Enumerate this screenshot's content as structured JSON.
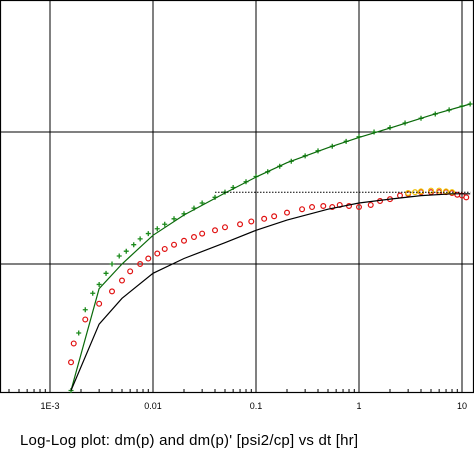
{
  "chart_data": {
    "type": "scatter",
    "title": "",
    "caption": "Log-Log plot: dm(p) and dm(p)'  [psi2/cp] vs dt [hr]",
    "x_scale": "log",
    "y_scale": "log",
    "xlim": [
      0.0003,
      12
    ],
    "x_ticks": [
      0.001,
      0.01,
      0.1,
      1,
      10
    ],
    "x_tick_labels": [
      "1E-3",
      "0.01",
      "0.1",
      "1",
      "10"
    ],
    "grid": true,
    "legend": "none",
    "series": [
      {
        "role": "pressure-change-data",
        "marker": "plus",
        "color": "#1a8a1a",
        "points": [
          [
            0.0016,
            0.011
          ],
          [
            0.0019,
            0.03
          ],
          [
            0.0022,
            0.045
          ],
          [
            0.0026,
            0.06
          ],
          [
            0.003,
            0.07
          ],
          [
            0.0035,
            0.085
          ],
          [
            0.004,
            0.1
          ],
          [
            0.0047,
            0.115
          ],
          [
            0.0055,
            0.125
          ],
          [
            0.0065,
            0.14
          ],
          [
            0.0075,
            0.155
          ],
          [
            0.009,
            0.17
          ],
          [
            0.011,
            0.185
          ],
          [
            0.013,
            0.2
          ],
          [
            0.016,
            0.22
          ],
          [
            0.02,
            0.24
          ],
          [
            0.025,
            0.265
          ],
          [
            0.03,
            0.29
          ],
          [
            0.04,
            0.32
          ],
          [
            0.05,
            0.35
          ],
          [
            0.06,
            0.38
          ],
          [
            0.08,
            0.42
          ],
          [
            0.1,
            0.46
          ],
          [
            0.13,
            0.5
          ],
          [
            0.17,
            0.55
          ],
          [
            0.22,
            0.6
          ],
          [
            0.3,
            0.66
          ],
          [
            0.4,
            0.72
          ],
          [
            0.55,
            0.78
          ],
          [
            0.75,
            0.85
          ],
          [
            1.0,
            0.92
          ],
          [
            1.4,
            1.0
          ],
          [
            2.0,
            1.08
          ],
          [
            2.8,
            1.17
          ],
          [
            4.0,
            1.27
          ],
          [
            5.5,
            1.37
          ],
          [
            7.5,
            1.47
          ],
          [
            10.0,
            1.57
          ],
          [
            12.0,
            1.63
          ]
        ]
      },
      {
        "role": "pressure-derivative-data",
        "marker": "circle",
        "color": "#e01010",
        "points": [
          [
            0.0016,
            0.018
          ],
          [
            0.0017,
            0.025
          ],
          [
            0.0022,
            0.038
          ],
          [
            0.003,
            0.05
          ],
          [
            0.004,
            0.062
          ],
          [
            0.005,
            0.075
          ],
          [
            0.006,
            0.088
          ],
          [
            0.0075,
            0.1
          ],
          [
            0.009,
            0.11
          ],
          [
            0.011,
            0.12
          ],
          [
            0.013,
            0.13
          ],
          [
            0.016,
            0.14
          ],
          [
            0.02,
            0.15
          ],
          [
            0.025,
            0.16
          ],
          [
            0.03,
            0.17
          ],
          [
            0.04,
            0.18
          ],
          [
            0.05,
            0.19
          ],
          [
            0.07,
            0.2
          ],
          [
            0.09,
            0.21
          ],
          [
            0.12,
            0.22
          ],
          [
            0.15,
            0.23
          ],
          [
            0.2,
            0.245
          ],
          [
            0.28,
            0.26
          ],
          [
            0.35,
            0.27
          ],
          [
            0.45,
            0.275
          ],
          [
            0.55,
            0.27
          ],
          [
            0.65,
            0.28
          ],
          [
            0.8,
            0.275
          ],
          [
            1.0,
            0.27
          ],
          [
            1.3,
            0.28
          ],
          [
            1.6,
            0.3
          ],
          [
            2.0,
            0.31
          ],
          [
            2.5,
            0.33
          ],
          [
            3.0,
            0.34
          ],
          [
            4.0,
            0.35
          ],
          [
            5.0,
            0.35
          ],
          [
            6.0,
            0.35
          ],
          [
            7.0,
            0.35
          ],
          [
            8.0,
            0.345
          ],
          [
            9.0,
            0.335
          ],
          [
            10.0,
            0.33
          ],
          [
            11.0,
            0.32
          ]
        ]
      },
      {
        "role": "highlighted-derivative-points",
        "marker": "circle",
        "color": "#f0c000",
        "points": [
          [
            3.0,
            0.345
          ],
          [
            3.5,
            0.35
          ],
          [
            4.0,
            0.355
          ],
          [
            5.0,
            0.36
          ],
          [
            6.0,
            0.36
          ],
          [
            7.0,
            0.355
          ],
          [
            8.0,
            0.35
          ]
        ]
      },
      {
        "role": "pressure-change-model",
        "style": "line",
        "color": "#0a6a0a",
        "points": [
          [
            0.0016,
            0.011
          ],
          [
            0.003,
            0.065
          ],
          [
            0.005,
            0.1
          ],
          [
            0.01,
            0.165
          ],
          [
            0.02,
            0.235
          ],
          [
            0.05,
            0.345
          ],
          [
            0.1,
            0.455
          ],
          [
            0.2,
            0.585
          ],
          [
            0.5,
            0.76
          ],
          [
            1.0,
            0.91
          ],
          [
            2.0,
            1.07
          ],
          [
            5.0,
            1.34
          ],
          [
            12.0,
            1.63
          ]
        ]
      },
      {
        "role": "pressure-derivative-model",
        "style": "line",
        "color": "#000000",
        "points": [
          [
            0.0016,
            0.011
          ],
          [
            0.003,
            0.035
          ],
          [
            0.005,
            0.055
          ],
          [
            0.01,
            0.085
          ],
          [
            0.02,
            0.11
          ],
          [
            0.05,
            0.145
          ],
          [
            0.1,
            0.18
          ],
          [
            0.2,
            0.215
          ],
          [
            0.5,
            0.26
          ],
          [
            1.0,
            0.29
          ],
          [
            2.0,
            0.31
          ],
          [
            4.0,
            0.33
          ],
          [
            8.0,
            0.34
          ],
          [
            12.0,
            0.34
          ]
        ]
      },
      {
        "role": "derivative-stabilization-line",
        "style": "dotted",
        "color": "#000000",
        "points": [
          [
            0.04,
            0.35
          ],
          [
            12.0,
            0.35
          ]
        ]
      }
    ]
  }
}
